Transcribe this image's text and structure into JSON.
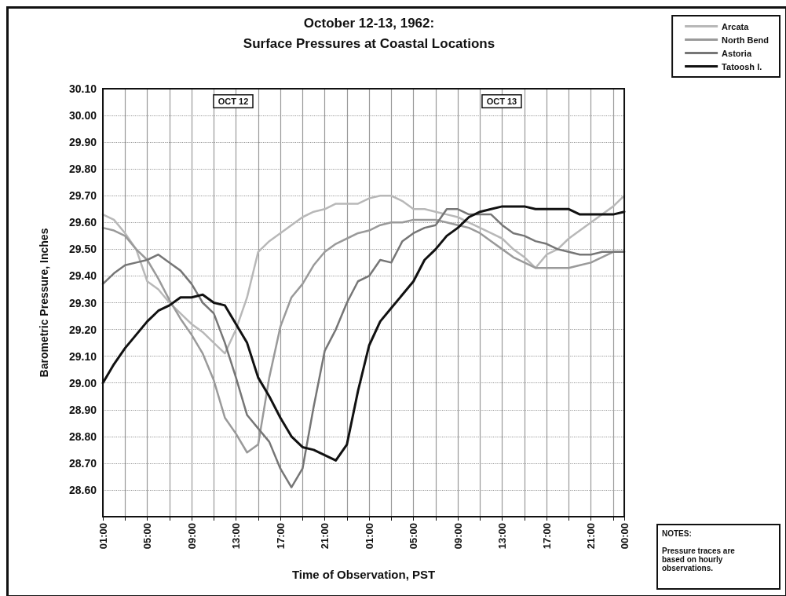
{
  "chart_data": {
    "type": "line",
    "title": "October 12-13, 1962:",
    "subtitle": "Surface Pressures at Coastal Locations",
    "xlabel": "Time of Observation, PST",
    "ylabel": "Barometric Pressure, Inches",
    "x": [
      "1962-10-12T01:00",
      "1962-10-12T02:00",
      "1962-10-12T03:00",
      "1962-10-12T04:00",
      "1962-10-12T05:00",
      "1962-10-12T06:00",
      "1962-10-12T07:00",
      "1962-10-12T08:00",
      "1962-10-12T09:00",
      "1962-10-12T10:00",
      "1962-10-12T11:00",
      "1962-10-12T12:00",
      "1962-10-12T13:00",
      "1962-10-12T14:00",
      "1962-10-12T15:00",
      "1962-10-12T16:00",
      "1962-10-12T17:00",
      "1962-10-12T18:00",
      "1962-10-12T19:00",
      "1962-10-12T20:00",
      "1962-10-12T21:00",
      "1962-10-12T22:00",
      "1962-10-12T23:00",
      "1962-10-13T00:00",
      "1962-10-13T01:00",
      "1962-10-13T02:00",
      "1962-10-13T03:00",
      "1962-10-13T04:00",
      "1962-10-13T05:00",
      "1962-10-13T06:00",
      "1962-10-13T07:00",
      "1962-10-13T08:00",
      "1962-10-13T09:00",
      "1962-10-13T10:00",
      "1962-10-13T11:00",
      "1962-10-13T12:00",
      "1962-10-13T13:00",
      "1962-10-13T14:00",
      "1962-10-13T15:00",
      "1962-10-13T16:00",
      "1962-10-13T17:00",
      "1962-10-13T18:00",
      "1962-10-13T19:00",
      "1962-10-13T20:00",
      "1962-10-13T21:00",
      "1962-10-13T22:00",
      "1962-10-13T23:00",
      "1962-10-14T00:00"
    ],
    "series": [
      {
        "name": "Arcata",
        "color": "#b8b8b8",
        "values": [
          29.63,
          29.61,
          29.56,
          29.5,
          29.38,
          29.35,
          29.3,
          29.26,
          29.22,
          29.19,
          29.15,
          29.11,
          29.2,
          29.32,
          29.49,
          29.53,
          29.56,
          29.59,
          29.62,
          29.64,
          29.65,
          29.67,
          29.67,
          29.67,
          29.69,
          29.7,
          29.7,
          29.68,
          29.65,
          29.65,
          29.64,
          29.63,
          29.62,
          29.6,
          29.58,
          29.56,
          29.54,
          29.5,
          29.47,
          29.43,
          29.48,
          29.5,
          29.54,
          29.57,
          29.6,
          29.63,
          29.66,
          29.7
        ]
      },
      {
        "name": "North Bend",
        "color": "#9a9a9a",
        "values": [
          29.58,
          29.57,
          29.55,
          29.5,
          29.46,
          29.39,
          29.31,
          29.24,
          29.18,
          29.11,
          29.01,
          28.87,
          28.81,
          28.74,
          28.77,
          29.02,
          29.21,
          29.32,
          29.37,
          29.44,
          29.49,
          29.52,
          29.54,
          29.56,
          29.57,
          29.59,
          29.6,
          29.6,
          29.61,
          29.61,
          29.61,
          29.6,
          29.59,
          29.58,
          29.56,
          29.53,
          29.5,
          29.47,
          29.45,
          29.43,
          29.43,
          29.43,
          29.43,
          29.44,
          29.45,
          29.47,
          29.49,
          29.49
        ]
      },
      {
        "name": "Astoria",
        "color": "#767676",
        "values": [
          29.37,
          29.41,
          29.44,
          29.45,
          29.46,
          29.48,
          29.45,
          29.42,
          29.37,
          29.3,
          29.26,
          29.15,
          29.02,
          28.88,
          28.83,
          28.78,
          28.68,
          28.61,
          28.68,
          28.91,
          29.12,
          29.2,
          29.3,
          29.38,
          29.4,
          29.46,
          29.45,
          29.53,
          29.56,
          29.58,
          29.59,
          29.65,
          29.65,
          29.63,
          29.63,
          29.63,
          29.59,
          29.56,
          29.55,
          29.53,
          29.52,
          29.5,
          29.49,
          29.48,
          29.48,
          29.49,
          29.49,
          29.49
        ]
      },
      {
        "name": "Tatoosh I.",
        "color": "#111111",
        "values": [
          29.0,
          29.07,
          29.13,
          29.18,
          29.23,
          29.27,
          29.29,
          29.32,
          29.32,
          29.33,
          29.3,
          29.29,
          29.22,
          29.15,
          29.02,
          28.95,
          28.87,
          28.8,
          28.76,
          28.75,
          28.73,
          28.71,
          28.77,
          28.97,
          29.14,
          29.23,
          29.28,
          29.33,
          29.38,
          29.46,
          29.5,
          29.55,
          29.58,
          29.62,
          29.64,
          29.65,
          29.66,
          29.66,
          29.66,
          29.65,
          29.65,
          29.65,
          29.65,
          29.63,
          29.63,
          29.63,
          29.63,
          29.64
        ]
      }
    ],
    "xlim": [
      "1962-10-12T01:00",
      "1962-10-14T00:00"
    ],
    "xticks": [
      {
        "value": "1962-10-12T01:00",
        "label": "01:00"
      },
      {
        "value": "1962-10-12T03:00",
        "label": null
      },
      {
        "value": "1962-10-12T05:00",
        "label": "05:00"
      },
      {
        "value": "1962-10-12T07:00",
        "label": null
      },
      {
        "value": "1962-10-12T09:00",
        "label": "09:00"
      },
      {
        "value": "1962-10-12T11:00",
        "label": null
      },
      {
        "value": "1962-10-12T13:00",
        "label": "13:00"
      },
      {
        "value": "1962-10-12T15:00",
        "label": null
      },
      {
        "value": "1962-10-12T17:00",
        "label": "17:00"
      },
      {
        "value": "1962-10-12T19:00",
        "label": null
      },
      {
        "value": "1962-10-12T21:00",
        "label": "21:00"
      },
      {
        "value": "1962-10-12T23:00",
        "label": null
      },
      {
        "value": "1962-10-13T01:00",
        "label": "01:00"
      },
      {
        "value": "1962-10-13T03:00",
        "label": null
      },
      {
        "value": "1962-10-13T05:00",
        "label": "05:00"
      },
      {
        "value": "1962-10-13T07:00",
        "label": null
      },
      {
        "value": "1962-10-13T09:00",
        "label": "09:00"
      },
      {
        "value": "1962-10-13T11:00",
        "label": null
      },
      {
        "value": "1962-10-13T13:00",
        "label": "13:00"
      },
      {
        "value": "1962-10-13T15:00",
        "label": null
      },
      {
        "value": "1962-10-13T17:00",
        "label": "17:00"
      },
      {
        "value": "1962-10-13T19:00",
        "label": null
      },
      {
        "value": "1962-10-13T21:00",
        "label": "21:00"
      },
      {
        "value": "1962-10-13T23:00",
        "label": null
      },
      {
        "value": "1962-10-14T00:00",
        "label": "00:00"
      }
    ],
    "ylim": [
      28.5,
      30.1
    ],
    "yticks": [
      {
        "value": 28.6,
        "label": "28.60"
      },
      {
        "value": 28.7,
        "label": "28.70"
      },
      {
        "value": 28.8,
        "label": "28.80"
      },
      {
        "value": 28.9,
        "label": "28.90"
      },
      {
        "value": 29.0,
        "label": "29.00"
      },
      {
        "value": 29.1,
        "label": "29.10"
      },
      {
        "value": 29.2,
        "label": "29.20"
      },
      {
        "value": 29.3,
        "label": "29.30"
      },
      {
        "value": 29.4,
        "label": "29.40"
      },
      {
        "value": 29.5,
        "label": "29.50"
      },
      {
        "value": 29.6,
        "label": "29.60"
      },
      {
        "value": 29.7,
        "label": "29.70"
      },
      {
        "value": 29.8,
        "label": "29.80"
      },
      {
        "value": 29.9,
        "label": "29.90"
      },
      {
        "value": 30.0,
        "label": "30.00"
      },
      {
        "value": 30.1,
        "label": "30.10"
      }
    ],
    "annotations": [
      "OCT 12",
      "OCT 13",
      "NOTES:",
      "Pressure traces are based on hourly observations."
    ],
    "grid": true,
    "legend": "top right",
    "marker": "none",
    "line_style": "solid"
  }
}
